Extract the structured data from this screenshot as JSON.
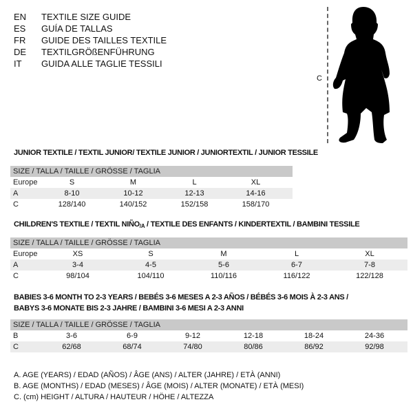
{
  "languages": [
    {
      "code": "EN",
      "text": "TEXTILE SIZE GUIDE"
    },
    {
      "code": "ES",
      "text": "GUÍA DE TALLAS"
    },
    {
      "code": "FR",
      "text": "GUIDE DES TAILLES TEXTILE"
    },
    {
      "code": "DE",
      "text": "TEXTILGRÖßENFÜHRUNG"
    },
    {
      "code": "IT",
      "text": "GUIDA ALLE TAGLIE TESSILI"
    }
  ],
  "figure": {
    "label": "C"
  },
  "junior": {
    "title": "JUNIOR TEXTILE / TEXTIL JUNIOR/ TEXTILE JUNIOR / JUNIORTEXTIL / JUNIOR TESSILE",
    "header": "SIZE / TALLA / TAILLE / GRÖSSE / TAGLIA",
    "rows": [
      {
        "label": "Europe",
        "values": [
          "S",
          "M",
          "L",
          "XL"
        ]
      },
      {
        "label": "A",
        "values": [
          "8-10",
          "10-12",
          "12-13",
          "14-16"
        ]
      },
      {
        "label": "C",
        "values": [
          "128/140",
          "140/152",
          "152/158",
          "158/170"
        ]
      }
    ]
  },
  "children": {
    "title_pre": "CHILDREN'S TEXTILE / TEXTIL NIÑO",
    "title_sub": "/A",
    "title_post": " / TEXTILE DES ENFANTS / KINDERTEXTIL / BAMBINI TESSILE",
    "header": "SIZE / TALLA / TAILLE / GRÖSSE / TAGLIA",
    "rows": [
      {
        "label": "Europe",
        "values": [
          "XS",
          "S",
          "M",
          "L",
          "XL"
        ]
      },
      {
        "label": "A",
        "values": [
          "3-4",
          "4-5",
          "5-6",
          "6-7",
          "7-8"
        ]
      },
      {
        "label": "C",
        "values": [
          "98/104",
          "104/110",
          "110/116",
          "116/122",
          "122/128"
        ]
      }
    ]
  },
  "babies": {
    "title_line1": "BABIES 3-6 MONTH TO 2-3 YEARS / BEBÉS 3-6 MESES A 2-3 AÑOS / BÉBÉS 3-6 MOIS À 2-3 ANS /",
    "title_line2": "BABYS 3-6 MONATE BIS 2-3 JAHRE / BAMBINI 3-6 MESI A 2-3 ANNI",
    "header": "SIZE / TALLA / TAILLE / GRÖSSE / TAGLIA",
    "rows": [
      {
        "label": "B",
        "values": [
          "3-6",
          "6-9",
          "9-12",
          "12-18",
          "18-24",
          "24-36"
        ]
      },
      {
        "label": "C",
        "values": [
          "62/68",
          "68/74",
          "74/80",
          "80/86",
          "86/92",
          "92/98"
        ]
      }
    ]
  },
  "legend": [
    "A. AGE (YEARS) / EDAD (AÑOS) / ÂGE (ANS) / ALTER (JAHRE) / ETÀ (ANNI)",
    "B. AGE (MONTHS) / EDAD (MESES) / ÂGE (MOIS) / ALTER (MONATE) / ETÀ (MESI)",
    "C. (cm) HEIGHT / ALTURA / HAUTEUR / HÖHE / ALTEZZA"
  ]
}
